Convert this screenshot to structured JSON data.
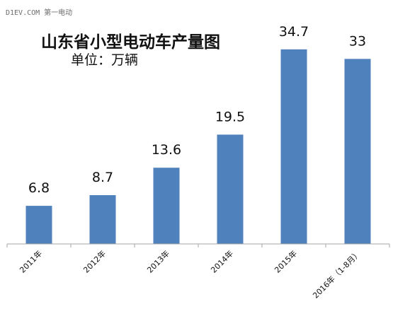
{
  "watermark": "D1EV.COM 第一电动",
  "colors": {
    "bar": "#4f81bd",
    "axis": "#a6a6a6",
    "text": "#111111"
  },
  "chart_data": {
    "type": "bar",
    "title": "山东省小型电动车产量图",
    "subtitle": "单位：万辆",
    "categories": [
      "2011年",
      "2012年",
      "2013年",
      "2014年",
      "2015年",
      "2016年（1-8月）"
    ],
    "values": [
      6.8,
      8.7,
      13.6,
      19.5,
      34.7,
      33
    ],
    "value_labels": [
      "6.8",
      "8.7",
      "13.6",
      "19.5",
      "34.7",
      "33"
    ],
    "ylim": [
      0,
      36
    ],
    "grid": false,
    "legend": "none"
  }
}
